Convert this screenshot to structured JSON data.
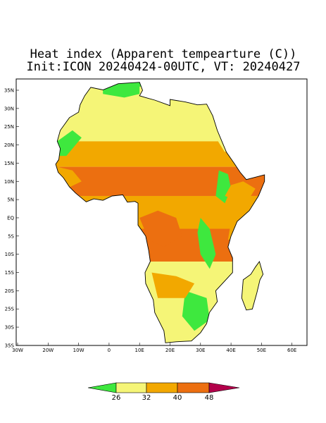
{
  "title": "Heat index (Apparent tempearture (C))",
  "subtitle": "Init:ICON 20240424-00UTC, VT: 20240427",
  "lat_labels": [
    "35N",
    "30N",
    "25N",
    "20N",
    "15N",
    "10N",
    "5N",
    "EQ",
    "5S",
    "10S",
    "15S",
    "20S",
    "25S",
    "30S",
    "35S"
  ],
  "lon_labels": [
    "30W",
    "20W",
    "10W",
    "0",
    "10E",
    "20E",
    "30E",
    "40E",
    "50E",
    "60E"
  ],
  "colorbar": {
    "ticks": [
      26,
      32,
      40,
      48
    ]
  }
}
